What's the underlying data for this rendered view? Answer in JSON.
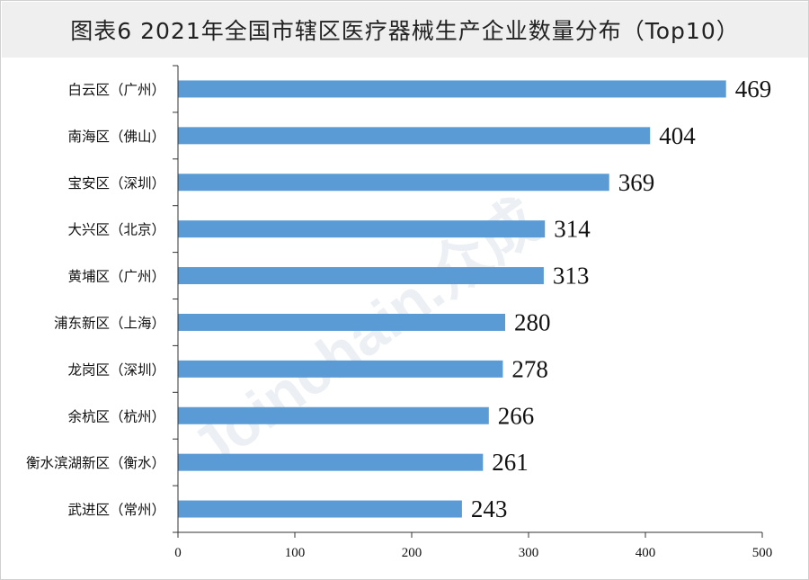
{
  "title": "图表6  2021年全国市辖区医疗器械生产企业数量分布（Top10）",
  "watermark": "Joinchain.众成",
  "colors": {
    "bar": "#5b9bd5",
    "title_bg": "#efefef",
    "axis": "#333333"
  },
  "chart_data": {
    "type": "bar",
    "orientation": "horizontal",
    "categories": [
      "白云区（广州）",
      "南海区（佛山）",
      "宝安区（深圳）",
      "大兴区（北京）",
      "黄埔区（广州）",
      "浦东新区（上海）",
      "龙岗区（深圳）",
      "余杭区（杭州）",
      "衡水滨湖新区（衡水）",
      "武进区（常州）"
    ],
    "values": [
      469,
      404,
      369,
      314,
      313,
      280,
      278,
      266,
      261,
      243
    ],
    "value_labels": [
      "469",
      "404",
      "369",
      "314",
      "313",
      "280",
      "278",
      "266",
      "261",
      "243"
    ],
    "xlim": [
      0,
      500
    ],
    "xticks": [
      0,
      100,
      200,
      300,
      400,
      500
    ],
    "xtick_labels": [
      "0",
      "100",
      "200",
      "300",
      "400",
      "500"
    ],
    "grid": false,
    "legend": "none"
  }
}
